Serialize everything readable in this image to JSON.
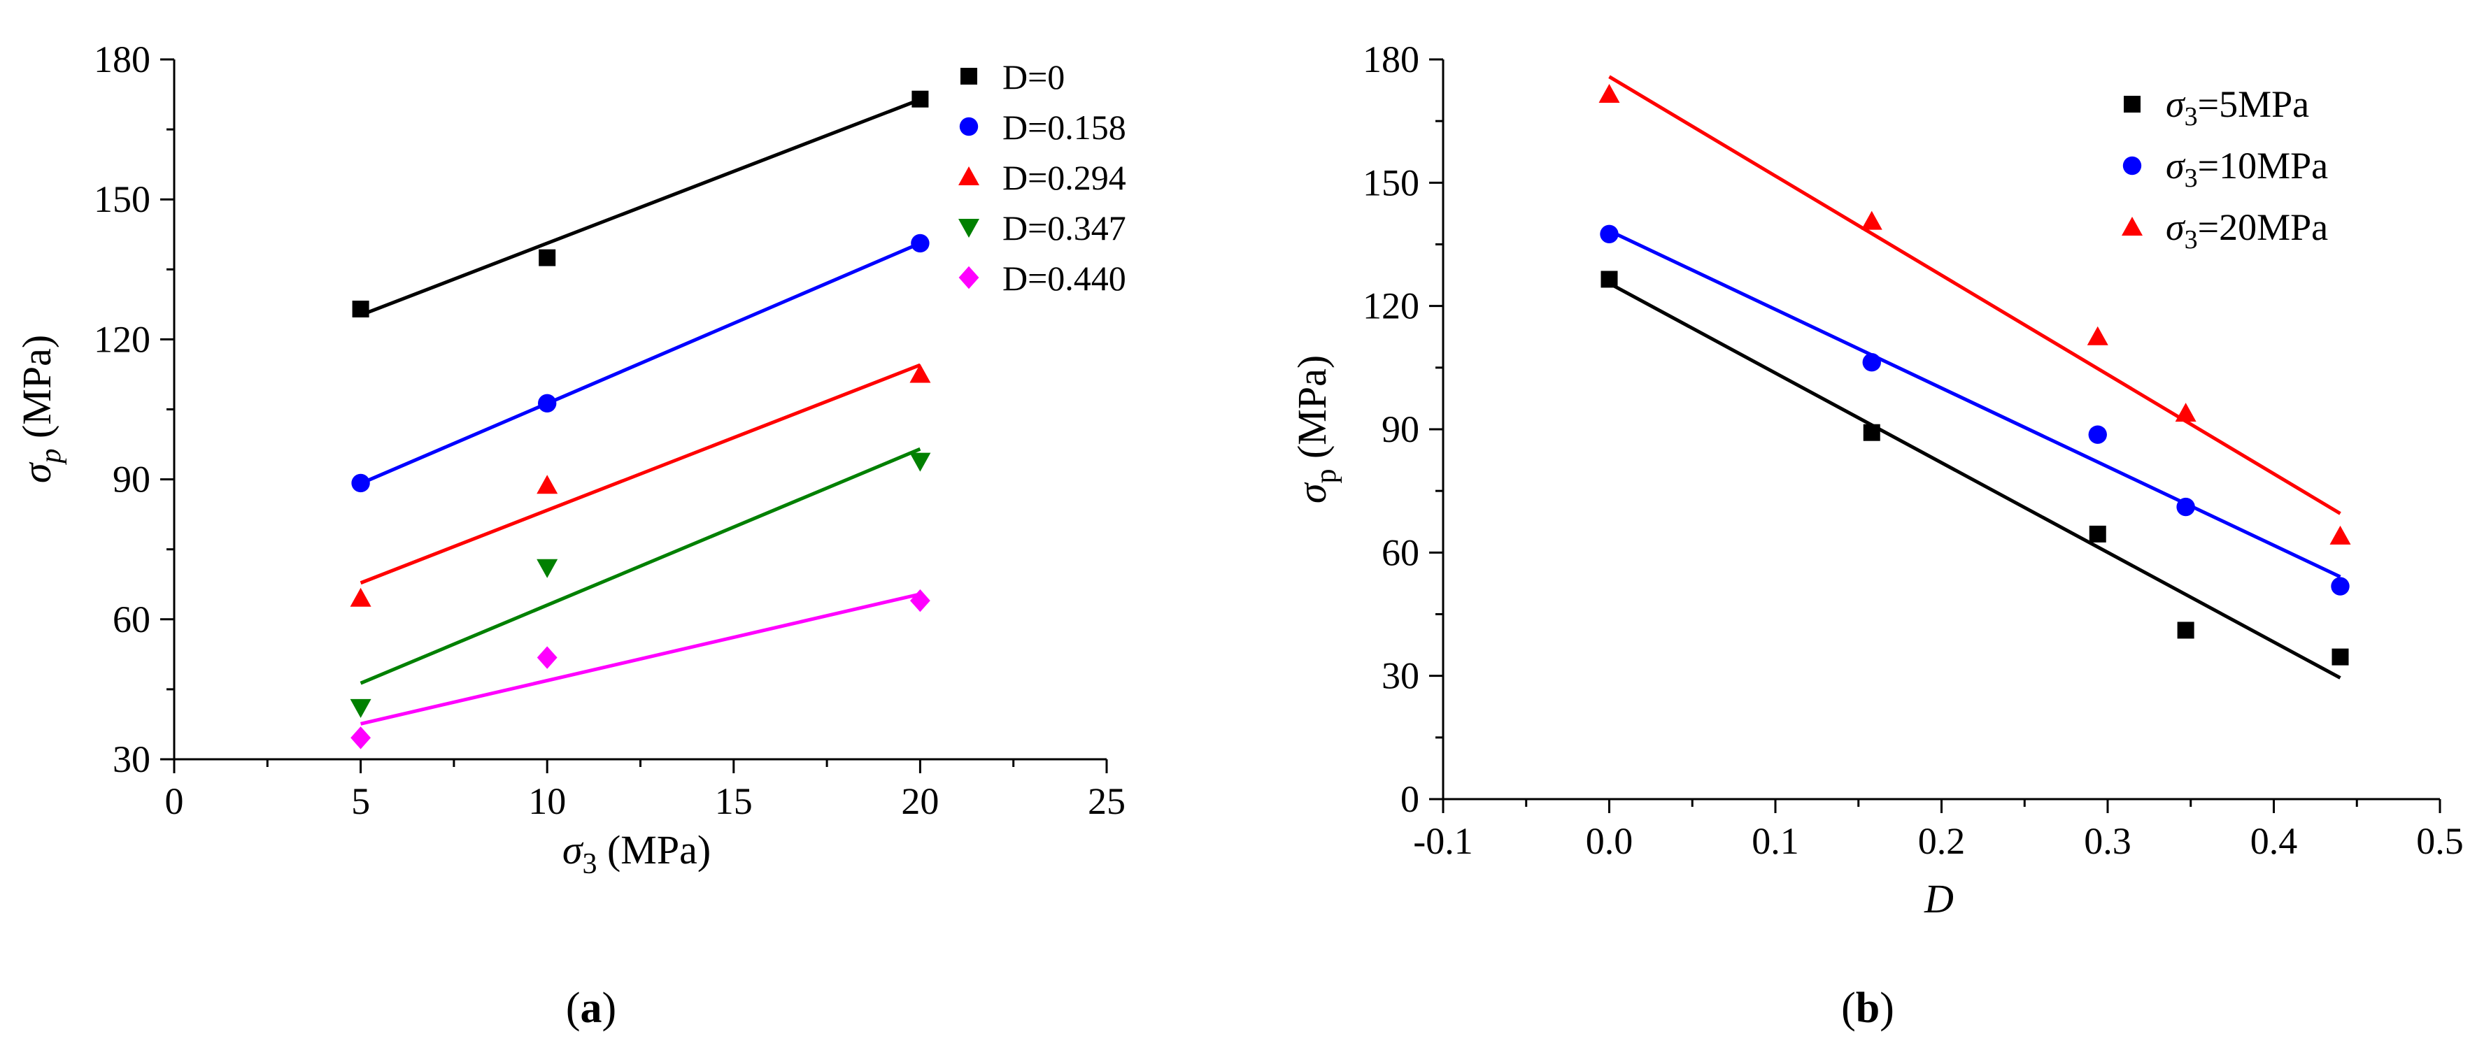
{
  "chart_data": [
    {
      "type": "scatter",
      "panel_label": "(a)",
      "xlabel": "σ3 (MPa)",
      "ylabel": "σp (MPa)",
      "xlim": [
        0,
        25
      ],
      "ylim": [
        30,
        180
      ],
      "xticks": [
        0,
        5,
        10,
        15,
        20,
        25
      ],
      "yticks": [
        30,
        60,
        90,
        120,
        150,
        180
      ],
      "grid": false,
      "legend_position": "top-right",
      "series": [
        {
          "name": "D=0",
          "color": "#000000",
          "marker": "square",
          "x": [
            5,
            10,
            20
          ],
          "y": [
            126.5,
            137.5,
            171.5
          ],
          "fit": [
            [
              5,
              125.2
            ],
            [
              20,
              171.4
            ]
          ]
        },
        {
          "name": "D=0.158",
          "color": "#0000ff",
          "marker": "circle",
          "x": [
            5,
            10,
            20
          ],
          "y": [
            89.2,
            106.3,
            140.6
          ],
          "fit": [
            [
              5,
              89.1
            ],
            [
              20,
              140.6
            ]
          ]
        },
        {
          "name": "D=0.294",
          "color": "#ff0000",
          "marker": "triangle-up",
          "x": [
            5,
            10,
            20
          ],
          "y": [
            64.5,
            88.7,
            112.5
          ],
          "fit": [
            [
              5,
              67.8
            ],
            [
              20,
              114.5
            ]
          ]
        },
        {
          "name": "D=0.347",
          "color": "#008000",
          "marker": "triangle-down",
          "x": [
            5,
            10,
            20
          ],
          "y": [
            41.1,
            71.1,
            93.9
          ],
          "fit": [
            [
              5,
              46.3
            ],
            [
              20,
              96.5
            ]
          ]
        },
        {
          "name": "D=0.440",
          "color": "#ff00ff",
          "marker": "diamond",
          "x": [
            5,
            10,
            20
          ],
          "y": [
            34.6,
            51.8,
            64.0
          ],
          "fit": [
            [
              5,
              37.6
            ],
            [
              20,
              65.4
            ]
          ]
        }
      ]
    },
    {
      "type": "scatter",
      "panel_label": "(b)",
      "xlabel": "D",
      "ylabel": "σp (MPa)",
      "xlim": [
        -0.1,
        0.5
      ],
      "ylim": [
        0,
        180
      ],
      "xticks": [
        -0.1,
        0.0,
        0.1,
        0.2,
        0.3,
        0.4,
        0.5
      ],
      "xtick_labels": [
        "-0.1",
        "0.0",
        "0.1",
        "0.2",
        "0.3",
        "0.4",
        "0.5"
      ],
      "yticks": [
        0,
        30,
        60,
        90,
        120,
        150,
        180
      ],
      "grid": false,
      "legend_position": "top-right",
      "series": [
        {
          "name": "σ3=5MPa",
          "color": "#000000",
          "marker": "square",
          "x": [
            0,
            0.158,
            0.294,
            0.347,
            0.44
          ],
          "y": [
            126.5,
            89.2,
            64.5,
            41.1,
            34.6
          ],
          "fit": [
            [
              0,
              125.5
            ],
            [
              0.44,
              29.5
            ]
          ]
        },
        {
          "name": "σ3=10MPa",
          "color": "#0000ff",
          "marker": "circle",
          "x": [
            0,
            0.158,
            0.294,
            0.347,
            0.44
          ],
          "y": [
            137.5,
            106.3,
            88.7,
            71.1,
            51.8
          ],
          "fit": [
            [
              0,
              138.3
            ],
            [
              0.44,
              54.1
            ]
          ]
        },
        {
          "name": "σ3=20MPa",
          "color": "#ff0000",
          "marker": "triangle-up",
          "x": [
            0,
            0.158,
            0.294,
            0.347,
            0.44
          ],
          "y": [
            171.5,
            140.6,
            112.5,
            93.9,
            64.0
          ],
          "fit": [
            [
              0,
              175.8
            ],
            [
              0.44,
              69.5
            ]
          ]
        }
      ]
    }
  ]
}
